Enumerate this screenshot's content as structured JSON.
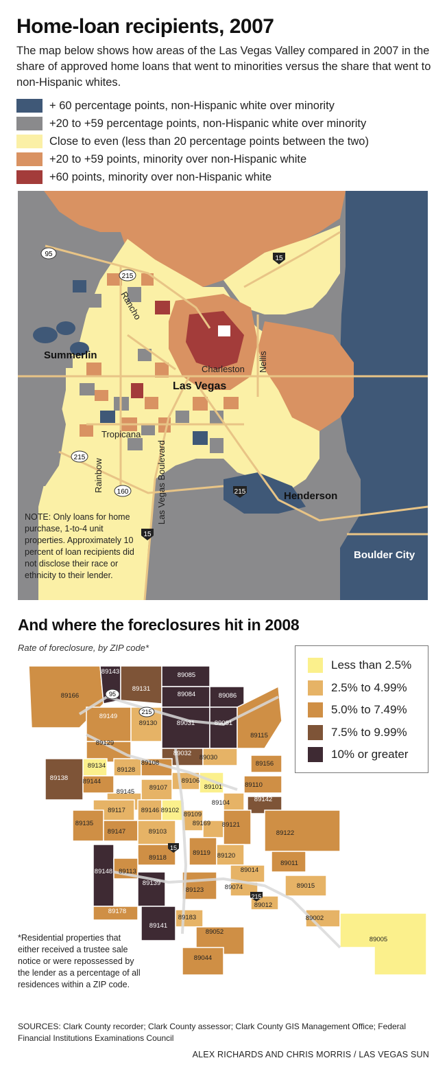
{
  "title": "Home-loan recipients, 2007",
  "intro": "The map below shows how areas of the Las Vegas Valley compared in 2007 in the share of approved home loans that went to minorities versus the share that went to non-Hispanic whites.",
  "legend1": [
    {
      "color": "#3f5877",
      "label": "+ 60 percentage points, non-Hispanic white over minority"
    },
    {
      "color": "#8a8a8c",
      "label": "+20 to +59 percentage points, non-Hispanic white over minority"
    },
    {
      "color": "#fbf0a6",
      "label": "Close to even (less than 20 percentage points between the two)"
    },
    {
      "color": "#d99262",
      "label": "+20 to +59 points, minority over non-Hispanic white"
    },
    {
      "color": "#a33c3a",
      "label": "+60 points, minority over non-Hispanic white"
    }
  ],
  "map1": {
    "places": {
      "summerlin": "Summerlin",
      "las_vegas": "Las Vegas",
      "henderson": "Henderson",
      "boulder_city": "Boulder City"
    },
    "streets": {
      "rancho": "Rancho",
      "charleston": "Charleston",
      "nellis": "Nellis",
      "tropicana": "Tropicana",
      "rainbow": "Rainbow",
      "lv_blvd": "Las Vegas Boulevard"
    },
    "shields": {
      "i95": "95",
      "i215a": "215",
      "i15a": "15",
      "i215b": "215",
      "i160": "160",
      "i215c": "215",
      "i15b": "15"
    },
    "note": "NOTE: Only loans for home purchase, 1-to-4 unit properties. Approximately 10 percent of loan recipients did not disclose their race or ethnicity to their lender."
  },
  "title2": "And where the foreclosures hit in 2008",
  "subtitle2": "Rate of foreclosure, by ZIP code*",
  "legend2": [
    {
      "color": "#fbf08c",
      "label": "Less than 2.5%"
    },
    {
      "color": "#e6b366",
      "label": "2.5% to 4.99%"
    },
    {
      "color": "#cf8f45",
      "label": "5.0% to 7.49%"
    },
    {
      "color": "#7e5437",
      "label": "7.5% to 9.99%"
    },
    {
      "color": "#3e2a33",
      "label": "10% or greater"
    }
  ],
  "zips": {
    "z89143": "89143",
    "z89085": "89085",
    "z89131": "89131",
    "z89084": "89084",
    "z89086": "89086",
    "z89166": "89166",
    "z89149": "89149",
    "z89130": "89130",
    "z89031": "89031",
    "z89081": "89081",
    "z89115": "89115",
    "z89129": "89129",
    "z89032": "89032",
    "z89030": "89030",
    "z89156": "89156",
    "z89134": "89134",
    "z89128": "89128",
    "z89108": "89108",
    "z89138": "89138",
    "z89144": "89144",
    "z89106": "89106",
    "z89101": "89101",
    "z89110": "89110",
    "z89107": "89107",
    "z89145": "89145",
    "z89104": "89104",
    "z89142": "89142",
    "z89117": "89117",
    "z89146": "89146",
    "z89102": "89102",
    "z89135": "89135",
    "z89169": "89169",
    "z89109": "89109",
    "z89121": "89121",
    "z89122": "89122",
    "z89147": "89147",
    "z89103": "89103",
    "z89118": "89118",
    "z89119": "89119",
    "z89120": "89120",
    "z89011": "89011",
    "z89148": "89148",
    "z89113": "89113",
    "z89014": "89014",
    "z89139": "89139",
    "z89123": "89123",
    "z89074": "89074",
    "z89015": "89015",
    "z89012": "89012",
    "z89178": "89178",
    "z89183": "89183",
    "z89002": "89002",
    "z89141": "89141",
    "z89052": "89052",
    "z89005": "89005",
    "z89044": "89044"
  },
  "shields2": {
    "s95": "95",
    "s215a": "215",
    "s15": "15",
    "s215b": "215"
  },
  "footnote": "*Residential properties that either received a trustee sale notice or were repossessed by the lender as a percentage of all residences within a ZIP code.",
  "sources": "SOURCES: Clark County recorder; Clark County assessor; Clark County GIS Management Office; Federal Financial Institutions Examinations Council",
  "credit": "ALEX RICHARDS AND CHRIS MORRIS / LAS VEGAS SUN"
}
